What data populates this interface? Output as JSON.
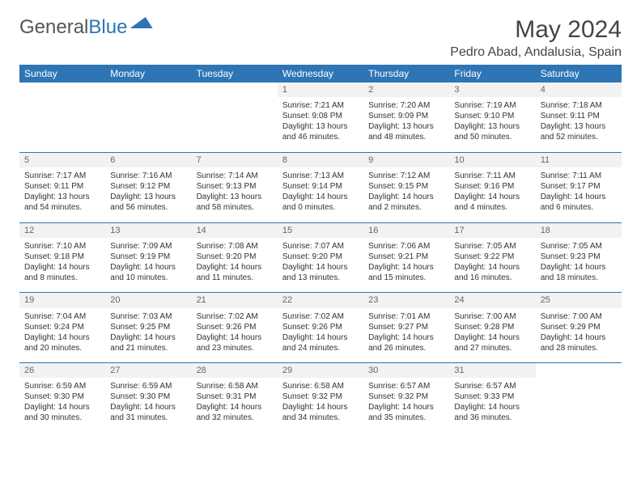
{
  "brand": {
    "part1": "General",
    "part2": "Blue"
  },
  "title": "May 2024",
  "location": "Pedro Abad, Andalusia, Spain",
  "colors": {
    "header_bg": "#2e75b6",
    "header_fg": "#ffffff",
    "daynum_bg": "#f2f2f2",
    "border": "#2e75b6"
  },
  "weekdays": [
    "Sunday",
    "Monday",
    "Tuesday",
    "Wednesday",
    "Thursday",
    "Friday",
    "Saturday"
  ],
  "weeks": [
    [
      null,
      null,
      null,
      {
        "n": "1",
        "sr": "7:21 AM",
        "ss": "9:08 PM",
        "dlh": "13",
        "dlm": "46"
      },
      {
        "n": "2",
        "sr": "7:20 AM",
        "ss": "9:09 PM",
        "dlh": "13",
        "dlm": "48"
      },
      {
        "n": "3",
        "sr": "7:19 AM",
        "ss": "9:10 PM",
        "dlh": "13",
        "dlm": "50"
      },
      {
        "n": "4",
        "sr": "7:18 AM",
        "ss": "9:11 PM",
        "dlh": "13",
        "dlm": "52"
      }
    ],
    [
      {
        "n": "5",
        "sr": "7:17 AM",
        "ss": "9:11 PM",
        "dlh": "13",
        "dlm": "54"
      },
      {
        "n": "6",
        "sr": "7:16 AM",
        "ss": "9:12 PM",
        "dlh": "13",
        "dlm": "56"
      },
      {
        "n": "7",
        "sr": "7:14 AM",
        "ss": "9:13 PM",
        "dlh": "13",
        "dlm": "58"
      },
      {
        "n": "8",
        "sr": "7:13 AM",
        "ss": "9:14 PM",
        "dlh": "14",
        "dlm": "0"
      },
      {
        "n": "9",
        "sr": "7:12 AM",
        "ss": "9:15 PM",
        "dlh": "14",
        "dlm": "2"
      },
      {
        "n": "10",
        "sr": "7:11 AM",
        "ss": "9:16 PM",
        "dlh": "14",
        "dlm": "4"
      },
      {
        "n": "11",
        "sr": "7:11 AM",
        "ss": "9:17 PM",
        "dlh": "14",
        "dlm": "6"
      }
    ],
    [
      {
        "n": "12",
        "sr": "7:10 AM",
        "ss": "9:18 PM",
        "dlh": "14",
        "dlm": "8"
      },
      {
        "n": "13",
        "sr": "7:09 AM",
        "ss": "9:19 PM",
        "dlh": "14",
        "dlm": "10"
      },
      {
        "n": "14",
        "sr": "7:08 AM",
        "ss": "9:20 PM",
        "dlh": "14",
        "dlm": "11"
      },
      {
        "n": "15",
        "sr": "7:07 AM",
        "ss": "9:20 PM",
        "dlh": "14",
        "dlm": "13"
      },
      {
        "n": "16",
        "sr": "7:06 AM",
        "ss": "9:21 PM",
        "dlh": "14",
        "dlm": "15"
      },
      {
        "n": "17",
        "sr": "7:05 AM",
        "ss": "9:22 PM",
        "dlh": "14",
        "dlm": "16"
      },
      {
        "n": "18",
        "sr": "7:05 AM",
        "ss": "9:23 PM",
        "dlh": "14",
        "dlm": "18"
      }
    ],
    [
      {
        "n": "19",
        "sr": "7:04 AM",
        "ss": "9:24 PM",
        "dlh": "14",
        "dlm": "20"
      },
      {
        "n": "20",
        "sr": "7:03 AM",
        "ss": "9:25 PM",
        "dlh": "14",
        "dlm": "21"
      },
      {
        "n": "21",
        "sr": "7:02 AM",
        "ss": "9:26 PM",
        "dlh": "14",
        "dlm": "23"
      },
      {
        "n": "22",
        "sr": "7:02 AM",
        "ss": "9:26 PM",
        "dlh": "14",
        "dlm": "24"
      },
      {
        "n": "23",
        "sr": "7:01 AM",
        "ss": "9:27 PM",
        "dlh": "14",
        "dlm": "26"
      },
      {
        "n": "24",
        "sr": "7:00 AM",
        "ss": "9:28 PM",
        "dlh": "14",
        "dlm": "27"
      },
      {
        "n": "25",
        "sr": "7:00 AM",
        "ss": "9:29 PM",
        "dlh": "14",
        "dlm": "28"
      }
    ],
    [
      {
        "n": "26",
        "sr": "6:59 AM",
        "ss": "9:30 PM",
        "dlh": "14",
        "dlm": "30"
      },
      {
        "n": "27",
        "sr": "6:59 AM",
        "ss": "9:30 PM",
        "dlh": "14",
        "dlm": "31"
      },
      {
        "n": "28",
        "sr": "6:58 AM",
        "ss": "9:31 PM",
        "dlh": "14",
        "dlm": "32"
      },
      {
        "n": "29",
        "sr": "6:58 AM",
        "ss": "9:32 PM",
        "dlh": "14",
        "dlm": "34"
      },
      {
        "n": "30",
        "sr": "6:57 AM",
        "ss": "9:32 PM",
        "dlh": "14",
        "dlm": "35"
      },
      {
        "n": "31",
        "sr": "6:57 AM",
        "ss": "9:33 PM",
        "dlh": "14",
        "dlm": "36"
      },
      null
    ]
  ],
  "labels": {
    "sunrise": "Sunrise:",
    "sunset": "Sunset:",
    "daylight": "Daylight:",
    "hours": "hours",
    "and": "and",
    "minutes": "minutes."
  }
}
